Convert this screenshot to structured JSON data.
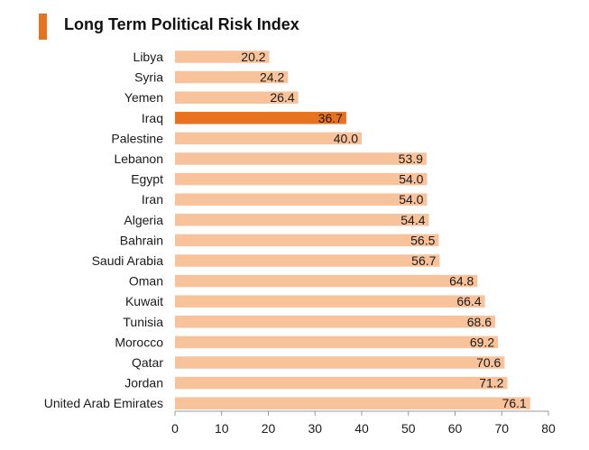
{
  "title": "Long Term Political Risk Index",
  "colors": {
    "bar": "#F8C29B",
    "highlight": "#E8731F",
    "accent": "#E8731F",
    "axis": "#999999"
  },
  "chart_data": {
    "type": "bar",
    "orientation": "horizontal",
    "title": "Long Term Political Risk Index",
    "xlabel": "",
    "ylabel": "",
    "xlim": [
      0,
      80
    ],
    "xticks": [
      0,
      10,
      20,
      30,
      40,
      50,
      60,
      70,
      80
    ],
    "grid": false,
    "highlight": "Iraq",
    "categories": [
      "Libya",
      "Syria",
      "Yemen",
      "Iraq",
      "Palestine",
      "Lebanon",
      "Egypt",
      "Iran",
      "Algeria",
      "Bahrain",
      "Saudi Arabia",
      "Oman",
      "Kuwait",
      "Tunisia",
      "Morocco",
      "Qatar",
      "Jordan",
      "United Arab Emirates"
    ],
    "values": [
      20.2,
      24.2,
      26.4,
      36.7,
      40.0,
      53.9,
      54.0,
      54.0,
      54.4,
      56.5,
      56.7,
      64.8,
      66.4,
      68.6,
      69.2,
      70.6,
      71.2,
      76.1
    ]
  }
}
